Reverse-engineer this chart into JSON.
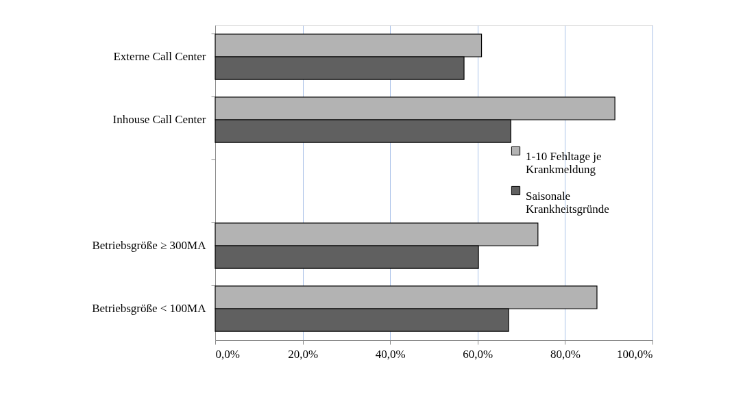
{
  "chart_data": {
    "type": "bar",
    "orientation": "horizontal",
    "categories": [
      "Externe Call Center",
      "Inhouse Call Center",
      null,
      "Betriebsgröße ≥ 300MA",
      "Betriebsgröße < 100MA"
    ],
    "series": [
      {
        "name": "1-10 Fehltage je Krankmeldung",
        "color": "#b3b3b3",
        "values": [
          60.9,
          91.4,
          null,
          73.8,
          87.3
        ]
      },
      {
        "name": "Saisonale Krankheitsgründe",
        "color": "#606060",
        "values": [
          56.9,
          67.6,
          null,
          60.2,
          67.1
        ]
      }
    ],
    "xlim": [
      0,
      100
    ],
    "xticks": [
      {
        "value": 0,
        "label": "0,0%"
      },
      {
        "value": 20,
        "label": "20,0%"
      },
      {
        "value": 40,
        "label": "40,0%"
      },
      {
        "value": 60,
        "label": "60,0%"
      },
      {
        "value": 80,
        "label": "80,0%"
      },
      {
        "value": 100,
        "label": "100,0%"
      }
    ],
    "grid": "x",
    "legend": "right"
  }
}
